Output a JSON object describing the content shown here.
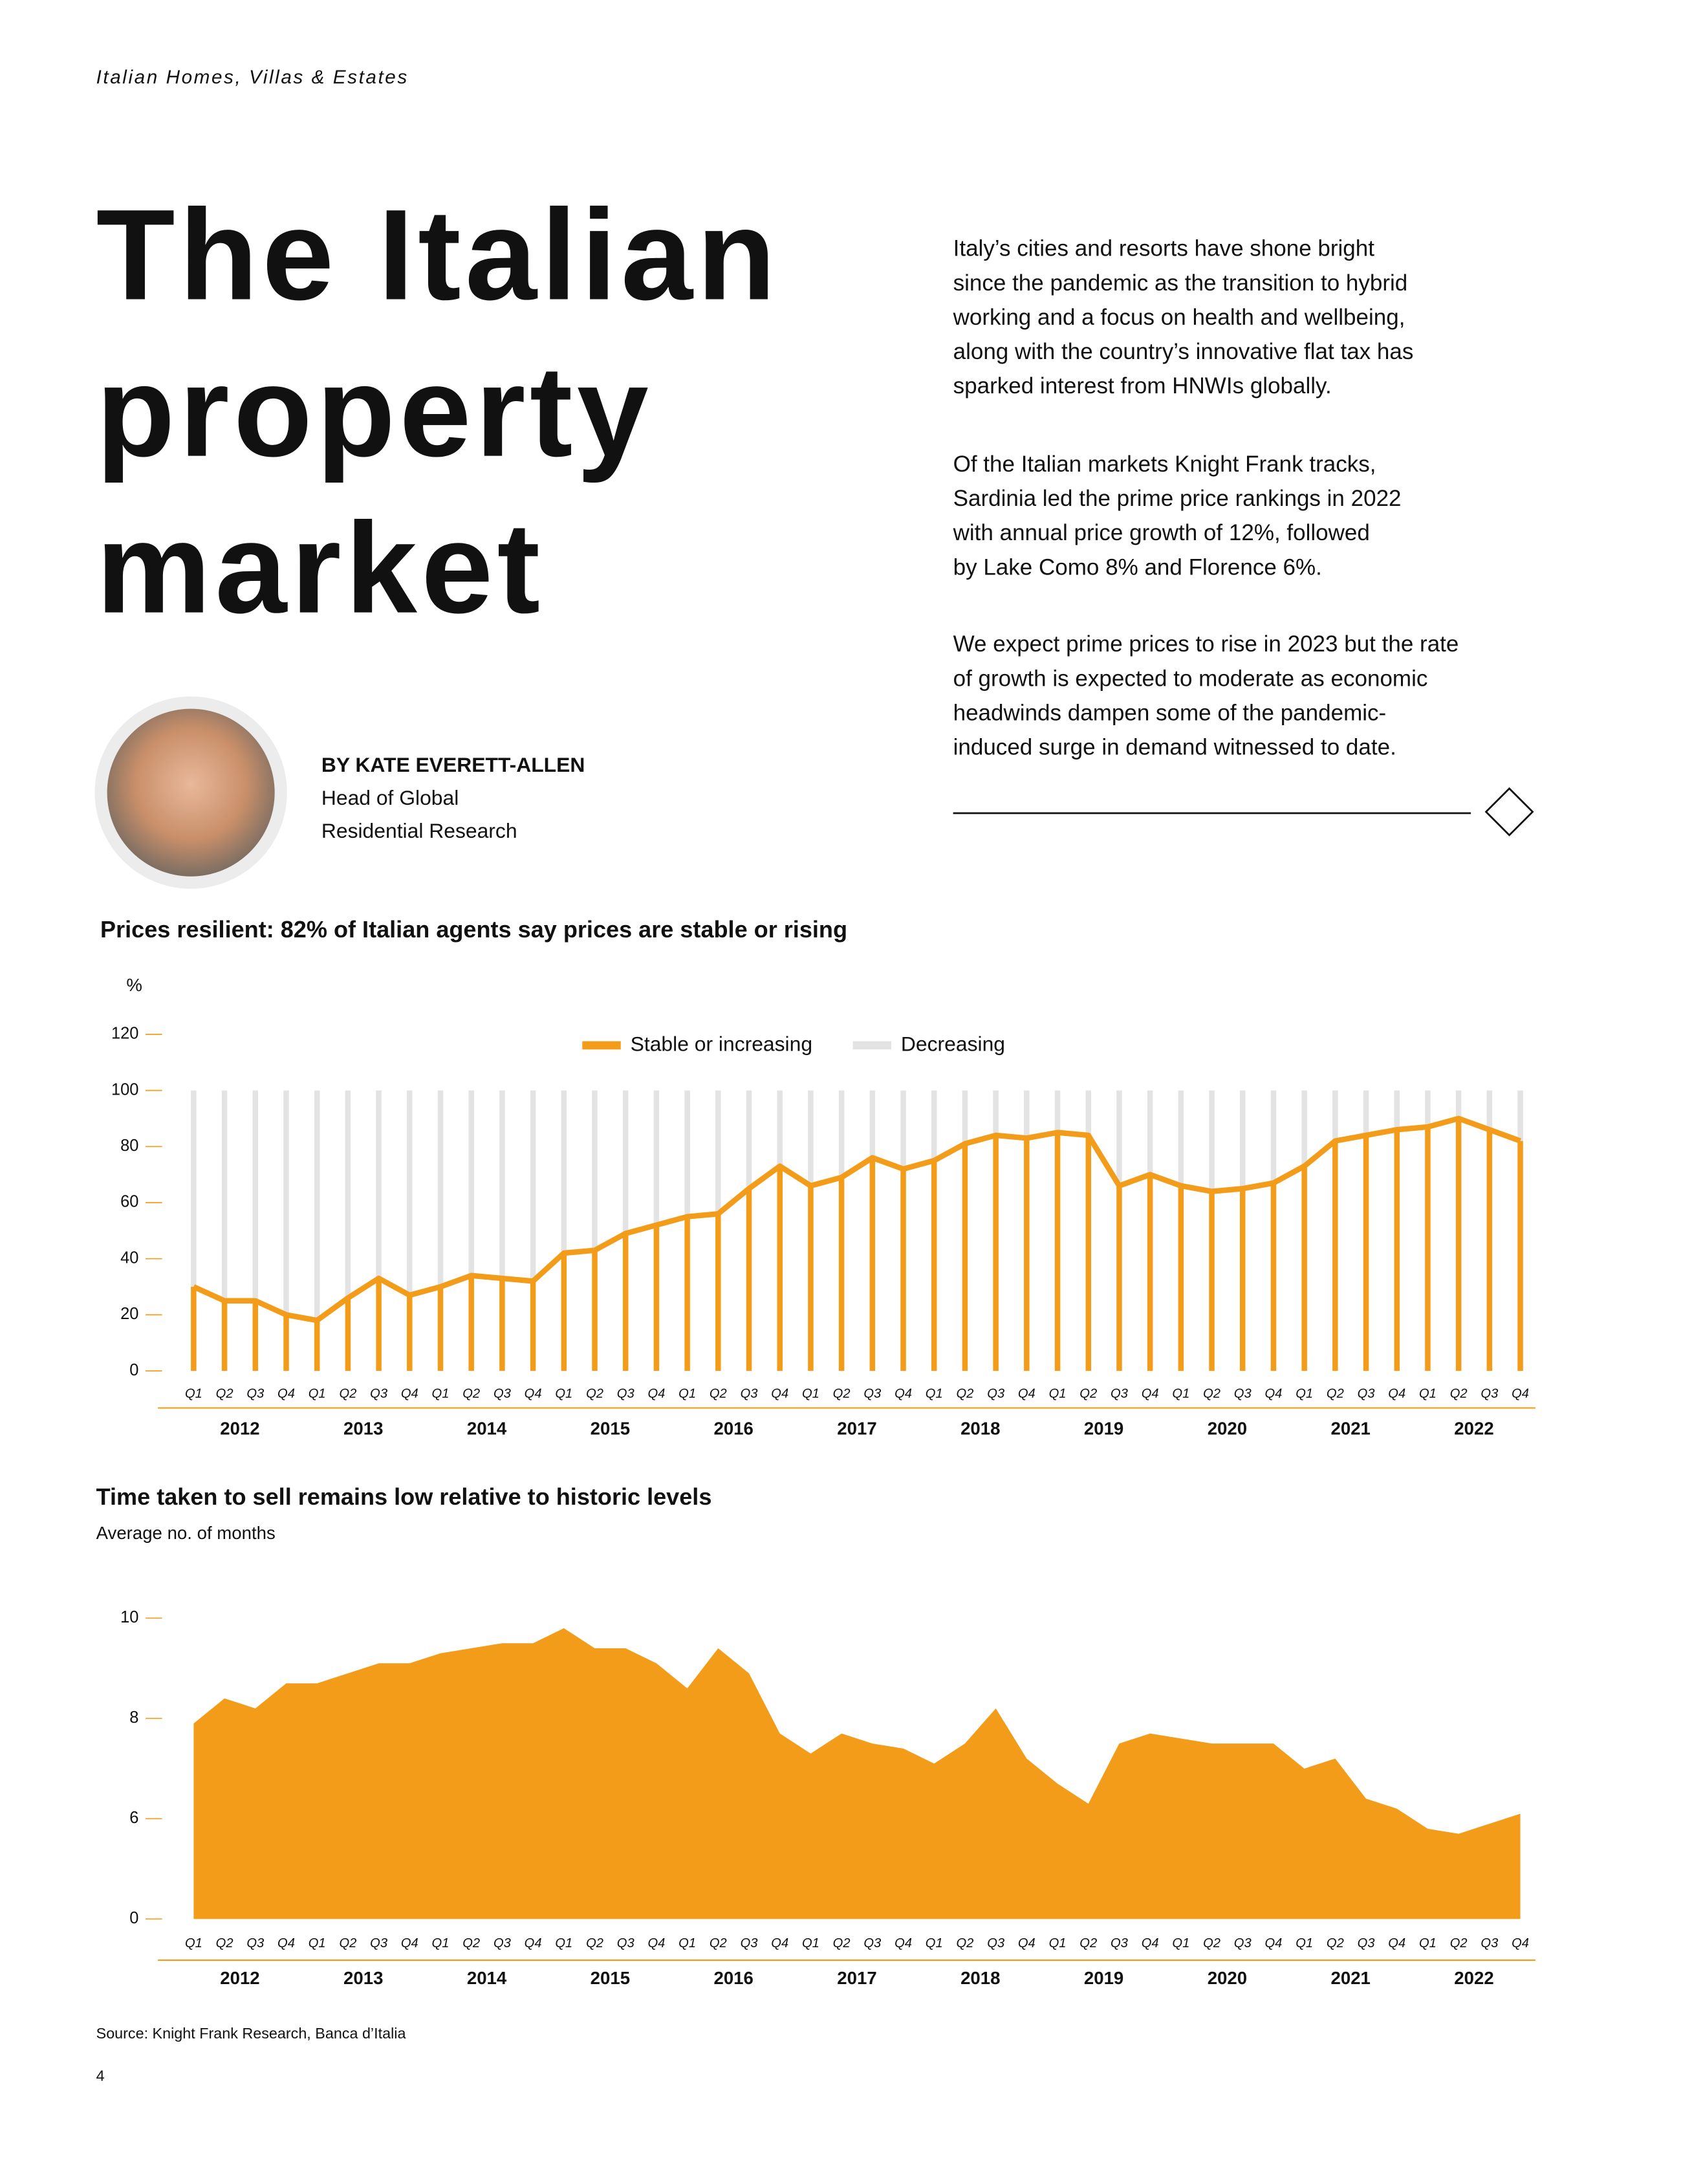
{
  "header": {
    "section": "Italian Homes, Villas & Estates"
  },
  "title_lines": [
    "The Italian",
    "property",
    "market"
  ],
  "author": {
    "byline": "BY KATE EVERETT-ALLEN",
    "role_lines": [
      "Head of Global",
      "Residential Research"
    ]
  },
  "body": [
    [
      "Italy’s cities and resorts have shone bright",
      "since the pandemic as the transition to hybrid",
      "working and a focus on health and wellbeing,",
      "along with the country’s innovative flat tax has",
      "sparked interest from HNWIs globally."
    ],
    [
      "Of the Italian markets Knight Frank tracks,",
      "Sardinia led the prime price rankings in 2022",
      "with annual price growth of 12%, followed",
      "by Lake Como 8% and Florence 6%."
    ],
    [
      "We expect prime prices to rise in 2023 but the rate",
      "of growth is expected to moderate as economic",
      "headwinds dampen some of the pandemic-",
      "induced surge in demand witnessed to date."
    ]
  ],
  "chart_data": [
    {
      "type": "bar",
      "stacked": true,
      "line_overlay": true,
      "title": "Prices resilient: 82% of Italian agents say prices are stable or rising",
      "y_label": "%",
      "categories": [
        "Q1",
        "Q2",
        "Q3",
        "Q4",
        "Q1",
        "Q2",
        "Q3",
        "Q4",
        "Q1",
        "Q2",
        "Q3",
        "Q4",
        "Q1",
        "Q2",
        "Q3",
        "Q4",
        "Q1",
        "Q2",
        "Q3",
        "Q4",
        "Q1",
        "Q2",
        "Q3",
        "Q4",
        "Q1",
        "Q2",
        "Q3",
        "Q4",
        "Q1",
        "Q2",
        "Q3",
        "Q4",
        "Q1",
        "Q2",
        "Q3",
        "Q4",
        "Q1",
        "Q2",
        "Q3",
        "Q4",
        "Q1",
        "Q2",
        "Q3",
        "Q4"
      ],
      "groups": [
        "2012",
        "2013",
        "2014",
        "2015",
        "2016",
        "2017",
        "2018",
        "2019",
        "2020",
        "2021",
        "2022"
      ],
      "series": [
        {
          "name": "Stable or increasing",
          "color": "#f39c1a",
          "values": [
            30,
            25,
            25,
            20,
            18,
            26,
            33,
            27,
            30,
            34,
            33,
            32,
            42,
            43,
            49,
            52,
            55,
            56,
            65,
            73,
            66,
            69,
            76,
            72,
            75,
            81,
            84,
            83,
            85,
            84,
            66,
            70,
            66,
            64,
            65,
            67,
            73,
            82,
            84,
            86,
            87,
            90,
            86,
            82
          ]
        },
        {
          "name": "Decreasing",
          "color": "#e3e3e3",
          "values": [
            70,
            75,
            75,
            80,
            82,
            74,
            67,
            73,
            70,
            66,
            67,
            68,
            58,
            57,
            51,
            48,
            45,
            44,
            35,
            27,
            34,
            31,
            24,
            28,
            25,
            19,
            16,
            17,
            15,
            16,
            34,
            30,
            34,
            36,
            35,
            33,
            27,
            18,
            16,
            14,
            13,
            10,
            14,
            18
          ]
        }
      ],
      "ylim": [
        0,
        120
      ],
      "yticks": [
        0,
        20,
        40,
        60,
        80,
        100,
        120
      ],
      "legend": "top"
    },
    {
      "type": "area",
      "ytick_spacing": "even",
      "title": "Time taken to sell remains low relative to historic levels",
      "subtitle": "Average no. of months",
      "categories": [
        "Q1",
        "Q2",
        "Q3",
        "Q4",
        "Q1",
        "Q2",
        "Q3",
        "Q4",
        "Q1",
        "Q2",
        "Q3",
        "Q4",
        "Q1",
        "Q2",
        "Q3",
        "Q4",
        "Q1",
        "Q2",
        "Q3",
        "Q4",
        "Q1",
        "Q2",
        "Q3",
        "Q4",
        "Q1",
        "Q2",
        "Q3",
        "Q4",
        "Q1",
        "Q2",
        "Q3",
        "Q4",
        "Q1",
        "Q2",
        "Q3",
        "Q4",
        "Q1",
        "Q2",
        "Q3",
        "Q4",
        "Q1",
        "Q2",
        "Q3",
        "Q4"
      ],
      "groups": [
        "2012",
        "2013",
        "2014",
        "2015",
        "2016",
        "2017",
        "2018",
        "2019",
        "2020",
        "2021",
        "2022"
      ],
      "color": "#f39c1a",
      "values": [
        7.9,
        8.4,
        8.2,
        8.7,
        8.7,
        8.9,
        9.1,
        9.1,
        9.3,
        9.4,
        9.5,
        9.5,
        9.8,
        9.4,
        9.4,
        9.1,
        8.6,
        9.4,
        8.9,
        7.7,
        7.3,
        7.7,
        7.5,
        7.4,
        7.1,
        7.5,
        8.2,
        7.2,
        6.7,
        6.3,
        7.5,
        7.7,
        7.6,
        7.5,
        7.5,
        7.5,
        7.0,
        7.2,
        6.4,
        6.2,
        5.4,
        5.1,
        5.7,
        6.1
      ],
      "ylim": [
        0,
        10
      ],
      "yticks": [
        0,
        6,
        8,
        10
      ]
    }
  ],
  "source": "Source: Knight Frank Research, Banca d’Italia",
  "page_number": "4"
}
